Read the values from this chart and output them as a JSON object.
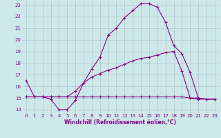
{
  "xlabel": "Windchill (Refroidissement éolien,°C)",
  "ylabel": "",
  "bg_color": "#cce8e8",
  "line_color": "#880088",
  "grid_color": "#aabbcc",
  "xlim": [
    -0.5,
    23.5
  ],
  "ylim": [
    13.7,
    23.3
  ],
  "yticks": [
    14,
    15,
    16,
    17,
    18,
    19,
    20,
    21,
    22,
    23
  ],
  "xticks": [
    0,
    1,
    2,
    3,
    4,
    5,
    6,
    7,
    8,
    9,
    10,
    11,
    12,
    13,
    14,
    15,
    16,
    17,
    18,
    19,
    20,
    21,
    22,
    23
  ],
  "line1_x": [
    0,
    1,
    2,
    3,
    4,
    5,
    6,
    7,
    8,
    9,
    10,
    11,
    12,
    13,
    14,
    15,
    16,
    17,
    18,
    19,
    20,
    21,
    22,
    23
  ],
  "line1_y": [
    16.5,
    15.1,
    15.1,
    14.9,
    14.0,
    14.0,
    14.8,
    16.3,
    17.5,
    18.5,
    20.4,
    21.0,
    21.9,
    22.5,
    23.1,
    23.1,
    22.8,
    21.5,
    19.5,
    18.8,
    17.2,
    15.0,
    14.9,
    14.9
  ],
  "line2_x": [
    0,
    1,
    2,
    3,
    4,
    5,
    6,
    7,
    8,
    9,
    10,
    11,
    12,
    13,
    14,
    15,
    16,
    17,
    18,
    19,
    20,
    21,
    22,
    23
  ],
  "line2_y": [
    15.1,
    15.1,
    15.1,
    15.1,
    15.1,
    15.1,
    15.1,
    15.1,
    15.1,
    15.1,
    15.1,
    15.1,
    15.1,
    15.1,
    15.1,
    15.1,
    15.1,
    15.1,
    15.1,
    15.1,
    15.0,
    15.0,
    14.9,
    14.9
  ],
  "line3_x": [
    0,
    1,
    2,
    3,
    4,
    5,
    6,
    7,
    8,
    9,
    10,
    11,
    12,
    13,
    14,
    15,
    16,
    17,
    18,
    19,
    20,
    21,
    22,
    23
  ],
  "line3_y": [
    15.1,
    15.1,
    15.1,
    15.1,
    15.1,
    15.1,
    15.6,
    16.3,
    16.8,
    17.1,
    17.4,
    17.6,
    17.9,
    18.2,
    18.4,
    18.5,
    18.7,
    18.9,
    19.0,
    17.3,
    15.0,
    14.9,
    14.9,
    14.9
  ],
  "tick_fontsize": 5.0,
  "xlabel_fontsize": 5.5
}
